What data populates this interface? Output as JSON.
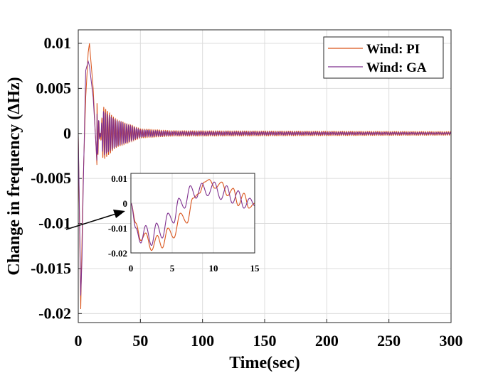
{
  "chart_data": [
    {
      "id": "main",
      "type": "line",
      "title": "",
      "xlabel": "Time(sec)",
      "ylabel": "Change in frequency (ΔHz)",
      "xlim": [
        0,
        300
      ],
      "ylim": [
        -0.021,
        0.0115
      ],
      "xticks": [
        0,
        50,
        100,
        150,
        200,
        250,
        300
      ],
      "xtick_labels": [
        "0",
        "50",
        "100",
        "150",
        "200",
        "250",
        "300"
      ],
      "yticks": [
        0.01,
        0.005,
        0,
        -0.005,
        -0.01,
        -0.015,
        -0.02
      ],
      "ytick_labels": [
        "0.01",
        "0.005",
        "0",
        "-0.005",
        "-0.01",
        "-0.015",
        "-0.02"
      ],
      "grid": true,
      "legend_position": "top-right",
      "series": [
        {
          "name": "Wind: PI",
          "color": "#D95319",
          "decay_points": [
            [
              0,
              0
            ],
            [
              1,
              -0.01
            ],
            [
              2,
              -0.0195
            ],
            [
              3,
              -0.012
            ],
            [
              4,
              -0.005
            ],
            [
              6,
              0.004
            ],
            [
              8,
              0.009
            ],
            [
              9,
              0.01
            ],
            [
              12,
              0.005
            ],
            [
              15,
              -0.0035
            ],
            [
              20,
              0.003
            ],
            [
              30,
              0.0016
            ],
            [
              50,
              0.0005
            ],
            [
              75,
              0.0003
            ],
            [
              300,
              0.0002
            ]
          ]
        },
        {
          "name": "Wind: GA",
          "color": "#7E2F8E",
          "decay_points": [
            [
              0,
              0
            ],
            [
              1,
              -0.009
            ],
            [
              2,
              -0.018
            ],
            [
              3,
              -0.014
            ],
            [
              4,
              -0.006
            ],
            [
              6,
              0.007
            ],
            [
              8,
              0.008
            ],
            [
              9,
              0.0075
            ],
            [
              12,
              0.004
            ],
            [
              15,
              -0.003
            ],
            [
              20,
              0.0025
            ],
            [
              30,
              0.0015
            ],
            [
              50,
              0.0004
            ],
            [
              75,
              0.0002
            ],
            [
              300,
              0.0001
            ]
          ]
        }
      ]
    },
    {
      "id": "inset",
      "type": "line",
      "xlim": [
        0,
        15
      ],
      "ylim": [
        -0.02,
        0.012
      ],
      "xticks": [
        0,
        5,
        10,
        15
      ],
      "xtick_labels": [
        "0",
        "5",
        "10",
        "15"
      ],
      "yticks": [
        0.01,
        0,
        -0.01,
        -0.02
      ],
      "ytick_labels": [
        "0.01",
        "0",
        "-0.01",
        "-0.02"
      ],
      "grid": true,
      "series": [
        {
          "name": "Wind: PI",
          "color": "#D95319",
          "points": [
            [
              0,
              0
            ],
            [
              0.6,
              -0.008
            ],
            [
              1.2,
              -0.015
            ],
            [
              1.8,
              -0.012
            ],
            [
              2.5,
              -0.019
            ],
            [
              3.2,
              -0.013
            ],
            [
              3.8,
              -0.018
            ],
            [
              4.5,
              -0.01
            ],
            [
              5.2,
              -0.014
            ],
            [
              6.0,
              -0.004
            ],
            [
              6.8,
              -0.008
            ],
            [
              7.5,
              0.002
            ],
            [
              8.3,
              0.004
            ],
            [
              8.9,
              0.0085
            ],
            [
              9.5,
              0.0095
            ],
            [
              10.2,
              0.006
            ],
            [
              11.0,
              0.0085
            ],
            [
              11.7,
              0.003
            ],
            [
              12.4,
              0.006
            ],
            [
              13.0,
              -0.001
            ],
            [
              13.7,
              0.004
            ],
            [
              14.3,
              -0.002
            ],
            [
              15,
              0.0
            ]
          ]
        },
        {
          "name": "Wind: GA",
          "color": "#7E2F8E",
          "points": [
            [
              0,
              0
            ],
            [
              0.6,
              -0.01
            ],
            [
              1.2,
              -0.016
            ],
            [
              1.8,
              -0.009
            ],
            [
              2.5,
              -0.017
            ],
            [
              3.1,
              -0.008
            ],
            [
              3.8,
              -0.014
            ],
            [
              4.5,
              -0.004
            ],
            [
              5.2,
              -0.008
            ],
            [
              5.8,
              0.002
            ],
            [
              6.5,
              -0.002
            ],
            [
              7.2,
              0.007
            ],
            [
              7.9,
              0.002
            ],
            [
              8.6,
              0.008
            ],
            [
              9.3,
              0.003
            ],
            [
              10.1,
              0.0085
            ],
            [
              10.9,
              0.0015
            ],
            [
              11.6,
              0.007
            ],
            [
              12.3,
              0.0
            ],
            [
              13.0,
              0.005
            ],
            [
              13.7,
              -0.002
            ],
            [
              14.4,
              0.002
            ],
            [
              15,
              -0.001
            ]
          ]
        }
      ]
    }
  ]
}
